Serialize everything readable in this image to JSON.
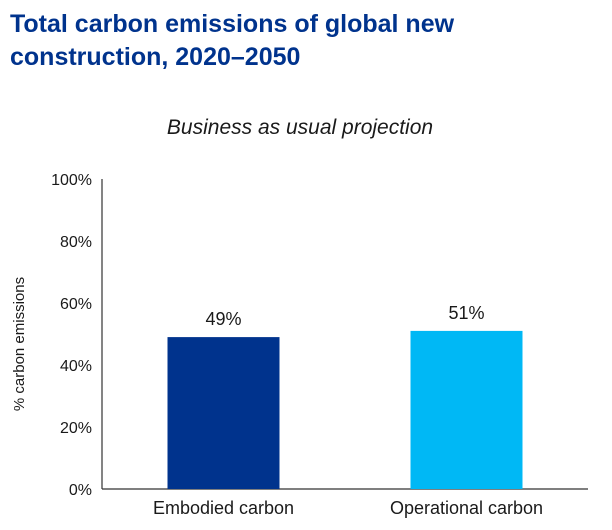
{
  "title": "Total carbon emissions of global new construction, 2020–2050",
  "chart_data": {
    "type": "bar",
    "title": "Business as usual projection",
    "categories": [
      "Embodied carbon",
      "Operational carbon"
    ],
    "values": [
      49,
      51
    ],
    "data_labels": [
      "49%",
      "51%"
    ],
    "colors": [
      "#00338D",
      "#00B8F5"
    ],
    "ylabel": "% carbon emissions",
    "xlabel": "",
    "ylim": [
      0,
      100
    ],
    "yticks": [
      0,
      20,
      40,
      60,
      80,
      100
    ],
    "ytick_labels": [
      "0%",
      "20%",
      "40%",
      "60%",
      "80%",
      "100%"
    ],
    "grid": false,
    "legend": "none"
  }
}
